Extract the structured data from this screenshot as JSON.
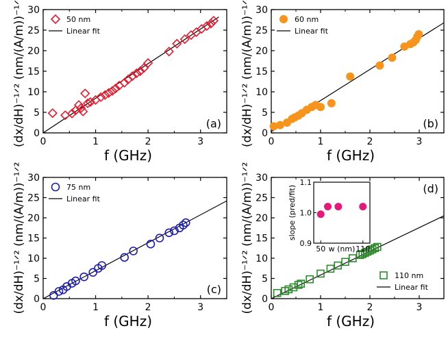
{
  "chart_data": [
    {
      "type": "scatter",
      "panel_label": "(a)",
      "xlabel": "f (GHz)",
      "ylabel": "(dx/dH)⁻¹ᐟ² (nm/(A/m))⁻¹ᐟ²",
      "xlim": [
        0,
        3.5
      ],
      "ylim": [
        0,
        30
      ],
      "xticks": [
        "0",
        "1",
        "2",
        "3"
      ],
      "yticks": [
        "0",
        "5",
        "10",
        "15",
        "20",
        "25",
        "30"
      ],
      "legend": {
        "data_label": "50 nm",
        "fit_label": "Linear fit",
        "position": "top-left"
      },
      "marker": "diamond",
      "color": "#e8192c",
      "series": [
        {
          "name": "50 nm",
          "x": [
            0.18,
            0.42,
            0.55,
            0.62,
            0.68,
            0.72,
            0.76,
            0.8,
            0.85,
            0.9,
            1.0,
            1.1,
            1.18,
            1.25,
            1.32,
            1.38,
            1.45,
            1.55,
            1.62,
            1.7,
            1.78,
            1.85,
            1.92,
            2.0,
            2.4,
            2.55,
            2.7,
            2.82,
            2.92,
            3.02,
            3.12,
            3.2,
            3.25
          ],
          "y": [
            4.8,
            4.3,
            4.7,
            5.5,
            6.8,
            6.0,
            5.2,
            9.6,
            7.2,
            7.5,
            8.0,
            8.7,
            9.2,
            9.7,
            10.2,
            10.8,
            11.5,
            12.2,
            13.0,
            13.8,
            14.5,
            15.0,
            15.8,
            17.0,
            19.8,
            21.7,
            22.8,
            23.8,
            24.5,
            25.3,
            26.0,
            26.6,
            27.3
          ]
        }
      ],
      "fit": {
        "x": [
          0,
          3.35
        ],
        "y": [
          0,
          28.2
        ]
      }
    },
    {
      "type": "scatter",
      "panel_label": "(b)",
      "xlabel": "f (GHz)",
      "ylabel": "(dx/dH)⁻¹ᐟ² (nm/(A/m))⁻¹ᐟ²",
      "xlim": [
        0,
        3.5
      ],
      "ylim": [
        0,
        30
      ],
      "xticks": [
        "0",
        "1",
        "2",
        "3"
      ],
      "yticks": [
        "0",
        "5",
        "10",
        "15",
        "20",
        "25",
        "30"
      ],
      "legend": {
        "data_label": "60 nm",
        "fit_label": "Linear fit",
        "position": "top-left"
      },
      "marker": "circle-filled",
      "color": "#f7941d",
      "series": [
        {
          "name": "60 nm",
          "x": [
            0.05,
            0.18,
            0.32,
            0.42,
            0.48,
            0.55,
            0.62,
            0.72,
            0.82,
            0.9,
            1.0,
            1.22,
            1.6,
            2.2,
            2.45,
            2.7,
            2.82,
            2.88,
            2.93,
            2.96,
            2.99
          ],
          "y": [
            1.6,
            1.9,
            2.5,
            3.4,
            3.8,
            4.2,
            4.8,
            5.6,
            6.3,
            6.8,
            6.3,
            7.2,
            13.7,
            16.4,
            18.3,
            21.0,
            21.6,
            22.0,
            22.6,
            23.4,
            24.0
          ]
        }
      ],
      "fit": {
        "x": [
          0,
          3.5
        ],
        "y": [
          0.3,
          26.8
        ]
      }
    },
    {
      "type": "scatter",
      "panel_label": "(c)",
      "xlabel": "f (GHz)",
      "ylabel": "(dx/dH)⁻¹ᐟ² (nm/(A/m))⁻¹ᐟ²",
      "xlim": [
        0,
        3.5
      ],
      "ylim": [
        0,
        30
      ],
      "xticks": [
        "0",
        "1",
        "2",
        "3"
      ],
      "yticks": [
        "0",
        "5",
        "10",
        "15",
        "20",
        "25",
        "30"
      ],
      "legend": {
        "data_label": "75 nm",
        "fit_label": "Linear fit",
        "position": "top-left"
      },
      "marker": "circle-open",
      "color": "#1a1ab5",
      "series": [
        {
          "name": "75 nm",
          "x": [
            0.2,
            0.3,
            0.38,
            0.45,
            0.55,
            0.62,
            0.78,
            0.95,
            1.05,
            1.12,
            1.55,
            1.72,
            2.05,
            2.22,
            2.4,
            2.5,
            2.6,
            2.67,
            2.72
          ],
          "y": [
            0.8,
            1.8,
            2.2,
            3.0,
            3.8,
            4.4,
            5.4,
            6.5,
            7.5,
            8.2,
            10.2,
            11.8,
            13.5,
            15.0,
            16.3,
            16.8,
            17.5,
            18.2,
            18.8
          ]
        }
      ],
      "fit": {
        "x": [
          0,
          3.5
        ],
        "y": [
          0,
          24.2
        ]
      }
    },
    {
      "type": "scatter",
      "panel_label": "(d)",
      "xlabel": "f (GHz)",
      "ylabel": "(dx/dH)⁻¹ᐟ² (nm/(A/m))⁻¹ᐟ²",
      "xlim": [
        0,
        3.5
      ],
      "ylim": [
        0,
        30
      ],
      "xticks": [
        "0",
        "1",
        "2",
        "3"
      ],
      "yticks": [
        "0",
        "5",
        "10",
        "15",
        "20",
        "25",
        "30"
      ],
      "legend": {
        "data_label": "110 nm",
        "fit_label": "Linear fit",
        "position": "bottom-right"
      },
      "marker": "square-open",
      "color": "#2a8a2a",
      "series": [
        {
          "name": "110 nm",
          "x": [
            0.12,
            0.28,
            0.35,
            0.45,
            0.55,
            0.6,
            0.78,
            1.0,
            1.2,
            1.35,
            1.5,
            1.65,
            1.8,
            1.85,
            1.9,
            1.95,
            2.0,
            2.05,
            2.1,
            2.15
          ],
          "y": [
            1.4,
            1.9,
            2.3,
            2.8,
            3.4,
            3.7,
            4.8,
            6.2,
            7.4,
            8.2,
            9.1,
            10.0,
            10.8,
            11.0,
            11.3,
            11.6,
            11.9,
            12.2,
            12.5,
            12.8
          ]
        }
      ],
      "fit": {
        "x": [
          0,
          3.5
        ],
        "y": [
          0,
          20.5
        ]
      },
      "inset": {
        "type": "scatter",
        "xlabel": "w (nm)",
        "ylabel": "slope (pred/fit)",
        "xlim": [
          40,
          120
        ],
        "ylim": [
          0.9,
          1.1
        ],
        "xticks": [
          "50",
          "110"
        ],
        "yticks": [
          "0.9",
          "1.0",
          "1.1"
        ],
        "color": "#e5197a",
        "x": [
          50,
          60,
          75,
          110
        ],
        "y": [
          0.995,
          1.02,
          1.02,
          1.02
        ]
      }
    }
  ]
}
